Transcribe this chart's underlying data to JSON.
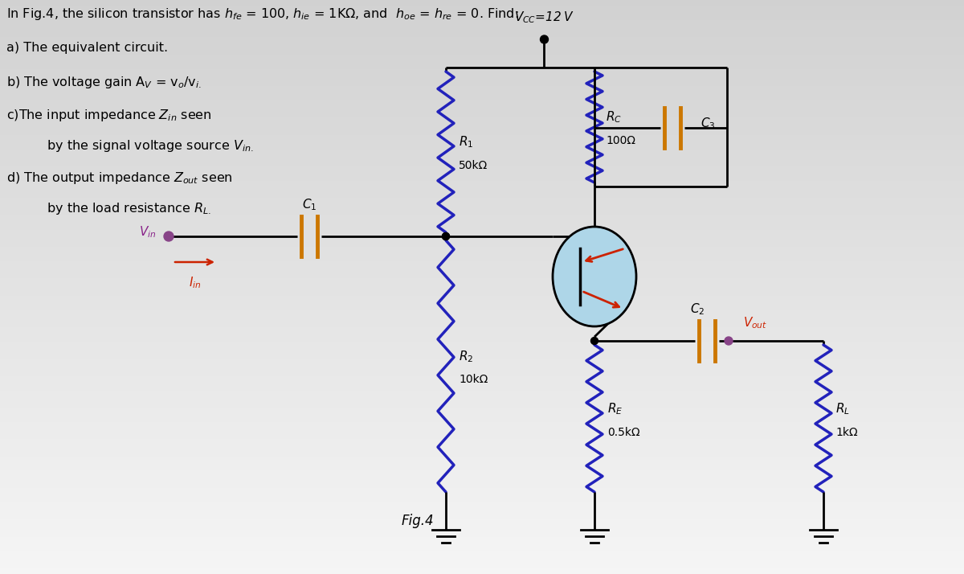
{
  "bg_color_top": "#f0f0f0",
  "bg_color_bot": "#c8c8c8",
  "wire_color": "#000000",
  "resistor_color": "#2222bb",
  "capacitor_color": "#cc7700",
  "transistor_fill": "#aed6e8",
  "vout_dot_color": "#884488",
  "vin_dot_color": "#884488",
  "red_color": "#cc2200",
  "vcc_label": "$V_{CC}$​=12 V",
  "r1_label": "$R_1$",
  "r1_val": "50kΩ",
  "r2_label": "$R_2$",
  "r2_val": "10kΩ",
  "rc_label": "$R_C$",
  "rc_val": "100Ω",
  "re_label": "$R_E$",
  "re_val": "0.5kΩ",
  "rl_label": "$R_L$",
  "rl_val": "1kΩ",
  "c1_label": "$C_1$",
  "c2_label": "$C_2$",
  "c3_label": "$C_3$",
  "vin_label": "$V_{in}$",
  "iin_label": "$I_{in}$",
  "vout_label": "$V_{out}$",
  "fig_label": "Fig.4"
}
